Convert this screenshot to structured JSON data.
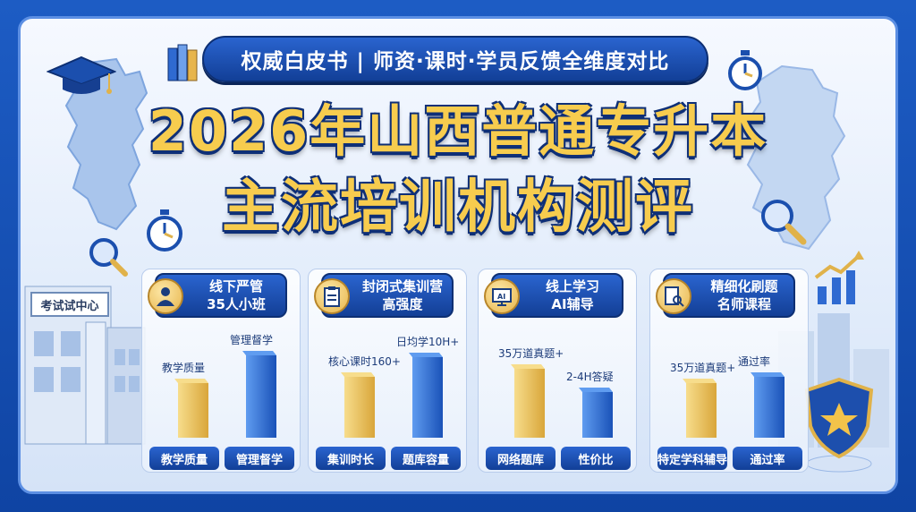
{
  "banner": {
    "subtitle": "权威白皮书 | 师资·课时·学员反馈全维度对比"
  },
  "title": {
    "line1": "2026年山西普通专升本",
    "line2": "主流培训机构测评"
  },
  "sign": "考试试中心",
  "colors": {
    "gold": "#f7cc4e",
    "navy": "#123f97",
    "bar_gold": "#e8c15e",
    "bar_blue": "#2f73d8"
  },
  "cards": [
    {
      "icon": "teacher-students-icon",
      "line1": "线下严管",
      "line2": "35人小班",
      "bars": [
        {
          "label": "教学质量",
          "value": 0.55,
          "color": "gold"
        },
        {
          "label": "管理督学",
          "value": 0.84,
          "color": "blue"
        }
      ],
      "categories": [
        "教学质量",
        "管理督学"
      ]
    },
    {
      "icon": "clipboard-icon",
      "line1": "封闭式集训营",
      "line2": "高强度",
      "bars": [
        {
          "label": "核心课时160+",
          "value": 0.62,
          "color": "gold"
        },
        {
          "label": "日均学10H+",
          "value": 0.82,
          "color": "blue"
        }
      ],
      "categories": [
        "集训时长",
        "题库容量"
      ]
    },
    {
      "icon": "ai-monitor-icon",
      "line1": "线上学习",
      "line2": "AI辅导",
      "bars": [
        {
          "label": "35万道真题+",
          "value": 0.7,
          "color": "gold"
        },
        {
          "label": "2-4H答疑",
          "value": 0.46,
          "color": "blue"
        }
      ],
      "categories": [
        "网络题库",
        "性价比"
      ]
    },
    {
      "icon": "document-search-icon",
      "line1": "精细化刷题",
      "line2": "名师课程",
      "bars": [
        {
          "label": "35万道真题+",
          "value": 0.55,
          "color": "gold"
        },
        {
          "label": "通过率",
          "value": 0.62,
          "color": "blue"
        }
      ],
      "categories": [
        "特定学科辅导",
        "通过率"
      ]
    }
  ]
}
